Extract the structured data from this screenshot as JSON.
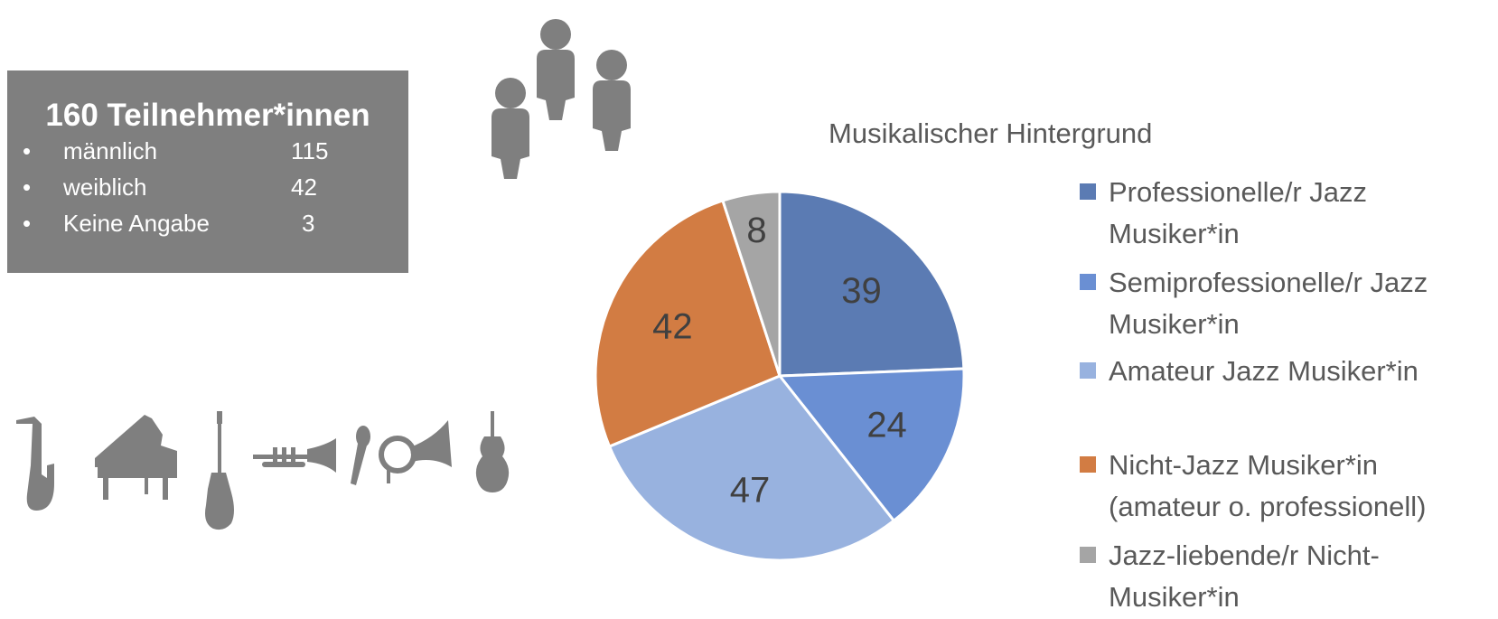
{
  "stats": {
    "title": "160 Teilnehmer*innen",
    "rows": [
      {
        "bullet": "•",
        "label": "männlich",
        "value": "115"
      },
      {
        "bullet": "•",
        "label": "weiblich",
        "value": "42"
      },
      {
        "bullet": "•",
        "label": "Keine Angabe",
        "value": "3"
      }
    ]
  },
  "icons": [
    "people-icon",
    "saxophone-icon",
    "piano-icon",
    "guitar-icon",
    "trumpet-icon",
    "microphone-icon",
    "horn-icon",
    "violin-icon"
  ],
  "chart_data": {
    "type": "pie",
    "title": "Musikalischer Hintergrund",
    "start": "12 o'clock",
    "direction": "clockwise",
    "labels": [
      "Professionelle/r Jazz Musiker*in",
      "Semiprofessionelle/r Jazz Musiker*in",
      "Amateur Jazz Musiker*in",
      "Nicht-Jazz Musiker*in (amateur o. professionell)",
      "Jazz-liebende/r Nicht-Musiker*in"
    ],
    "legend_lines": [
      [
        "Professionelle/r Jazz",
        "Musiker*in"
      ],
      [
        "Semiprofessionelle/r Jazz",
        "Musiker*in"
      ],
      [
        "Amateur Jazz Musiker*in"
      ],
      [
        "Nicht-Jazz Musiker*in",
        "(amateur o. professionell)"
      ],
      [
        "Jazz-liebende/r Nicht-",
        "Musiker*in"
      ]
    ],
    "values": [
      39,
      24,
      47,
      42,
      8
    ],
    "colors": [
      "#5b7bb3",
      "#6a8fd3",
      "#98b2df",
      "#d27c43",
      "#a5a5a5"
    ],
    "legend_position": "right"
  }
}
